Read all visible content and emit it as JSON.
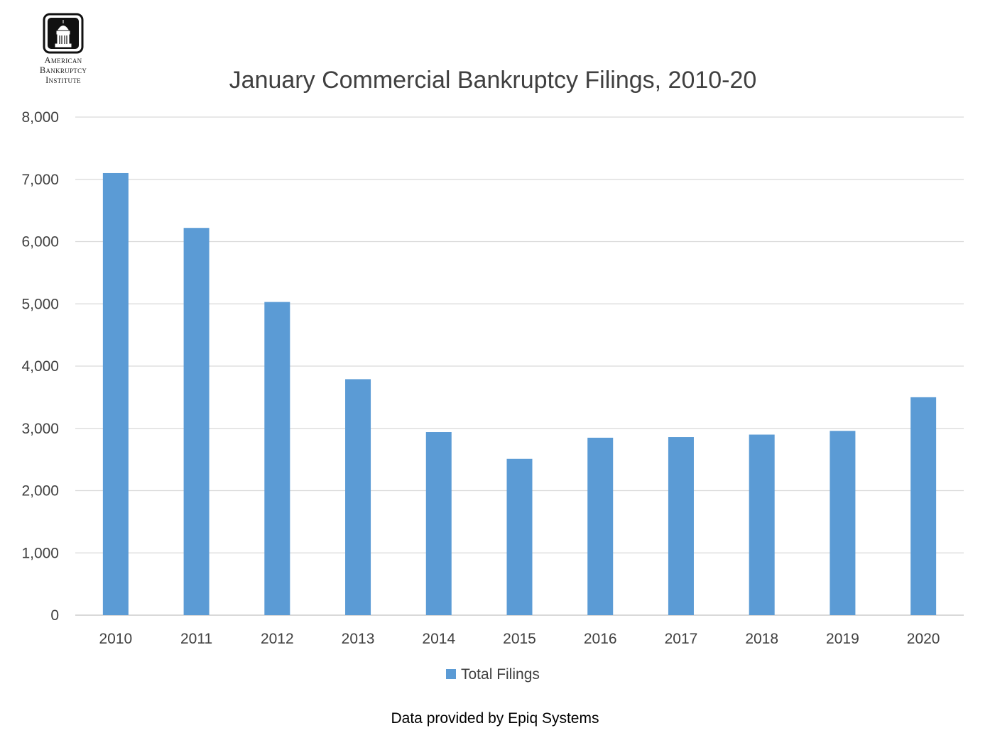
{
  "logo": {
    "lines": [
      "American",
      "Bankruptcy",
      "Institute"
    ]
  },
  "source_note": "Data provided by Epiq Systems",
  "colors": {
    "bar": "#5b9bd5",
    "grid": "#d9d9d9",
    "axis": "#d9d9d9",
    "text": "#404040"
  },
  "chart_data": {
    "type": "bar",
    "title": "January Commercial Bankruptcy Filings, 2010-20",
    "xlabel": "",
    "ylabel": "",
    "categories": [
      "2010",
      "2011",
      "2012",
      "2013",
      "2014",
      "2015",
      "2016",
      "2017",
      "2018",
      "2019",
      "2020"
    ],
    "series": [
      {
        "name": "Total Filings",
        "color": "#5b9bd5",
        "values": [
          7100,
          6220,
          5030,
          3790,
          2940,
          2510,
          2850,
          2860,
          2900,
          2960,
          3500
        ]
      }
    ],
    "ylim": [
      0,
      8000
    ],
    "yticks": [
      0,
      1000,
      2000,
      3000,
      4000,
      5000,
      6000,
      7000,
      8000
    ],
    "ytick_labels": [
      "0",
      "1,000",
      "2,000",
      "3,000",
      "4,000",
      "5,000",
      "6,000",
      "7,000",
      "8,000"
    ],
    "grid": true,
    "legend": "bottom"
  }
}
